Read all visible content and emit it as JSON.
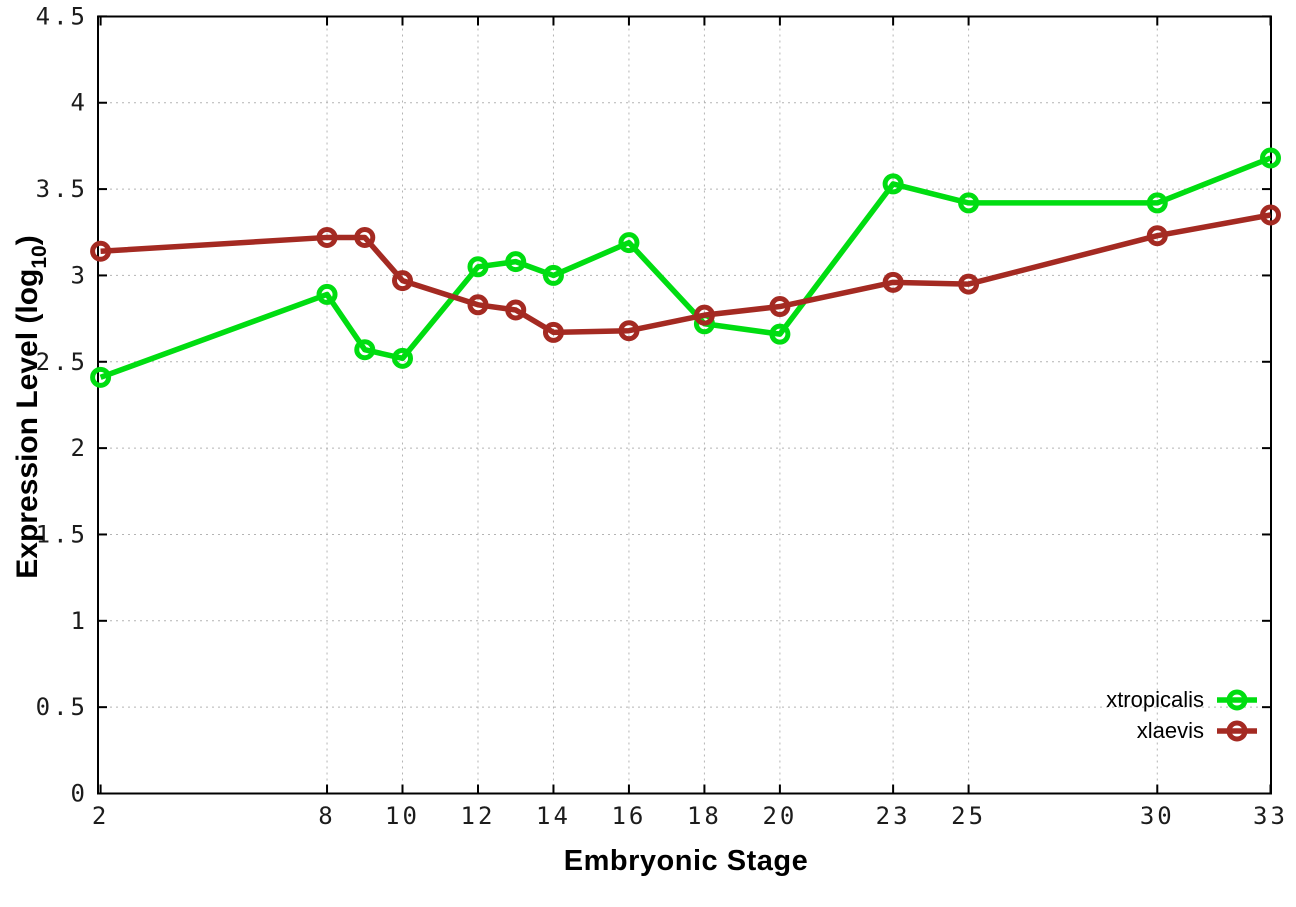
{
  "figure": {
    "background": "#ffffff",
    "grid_color": "#b4b4b4",
    "axis_color": "#000000",
    "y_axis_title_prefix": "Expression Level (log",
    "y_axis_title_sub": "10",
    "y_axis_title_suffix": ")",
    "x_axis_title": "Embryonic Stage"
  },
  "legend": {
    "entries": [
      {
        "label": "xtropicalis",
        "color": "#00dd11"
      },
      {
        "label": "xlaevis",
        "color": "#a42a22"
      }
    ]
  },
  "chart_data": {
    "type": "line",
    "title": "",
    "xlabel": "Embryonic Stage",
    "ylabel": "Expression Level (log10)",
    "x": [
      2,
      8,
      9,
      10,
      12,
      13,
      14,
      16,
      18,
      20,
      23,
      25,
      30,
      33
    ],
    "series": [
      {
        "name": "xtropicalis",
        "color": "#00dd11",
        "values": [
          2.41,
          2.89,
          2.57,
          2.52,
          3.05,
          3.08,
          3.0,
          3.19,
          2.72,
          2.66,
          3.53,
          3.42,
          3.42,
          3.68
        ]
      },
      {
        "name": "xlaevis",
        "color": "#a42a22",
        "values": [
          3.14,
          3.22,
          3.22,
          2.97,
          2.83,
          2.8,
          2.67,
          2.68,
          2.77,
          2.82,
          2.96,
          2.95,
          3.23,
          3.35
        ]
      }
    ],
    "xticks": [
      2,
      8,
      10,
      12,
      14,
      16,
      18,
      20,
      23,
      25,
      30,
      33
    ],
    "yticks": [
      0,
      0.5,
      1,
      1.5,
      2,
      2.5,
      3,
      3.5,
      4,
      4.5
    ],
    "xlim": [
      2,
      33
    ],
    "ylim": [
      0,
      4.5
    ],
    "grid": true,
    "legend_position": "bottom-right",
    "marker": "open-circle"
  }
}
